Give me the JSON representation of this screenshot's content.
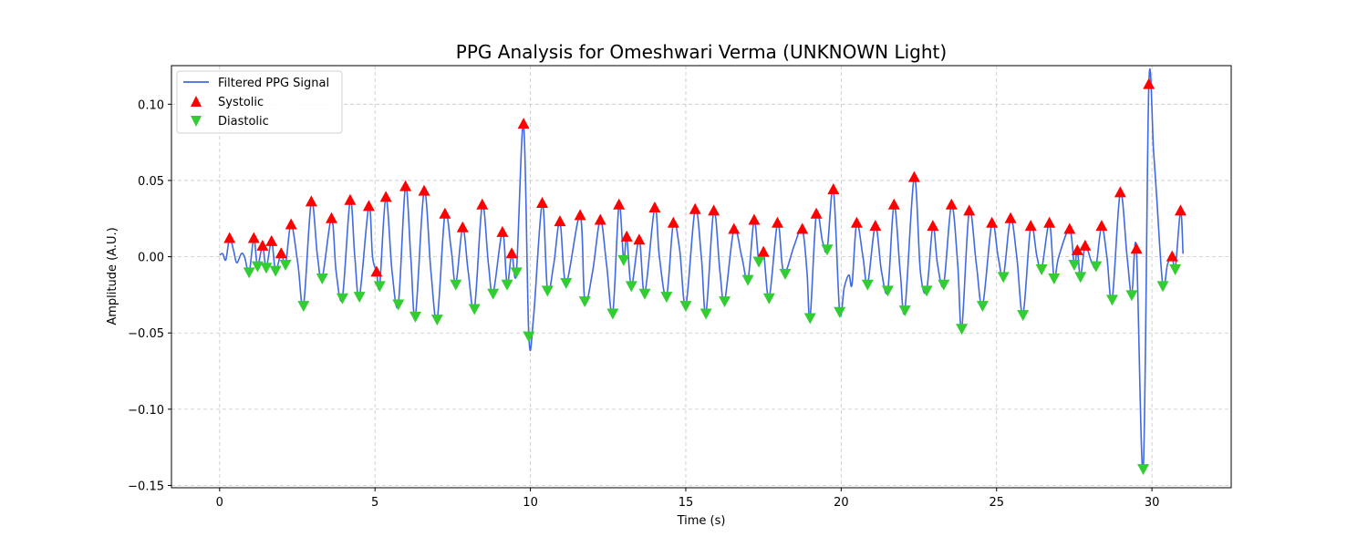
{
  "chart_data": {
    "type": "line",
    "title": "PPG Analysis for Omeshwari Verma (UNKNOWN Light)",
    "xlabel": "Time (s)",
    "ylabel": "Amplitude (A.U.)",
    "xlim": [
      -1.55,
      32.55
    ],
    "ylim": [
      -0.1515,
      0.1253
    ],
    "xticks": [
      0,
      5,
      10,
      15,
      20,
      25,
      30
    ],
    "xtick_labels": [
      "0",
      "5",
      "10",
      "15",
      "20",
      "25",
      "30"
    ],
    "yticks": [
      -0.15,
      -0.1,
      -0.05,
      0.0,
      0.05,
      0.1
    ],
    "ytick_labels": [
      "−0.15",
      "−0.10",
      "−0.05",
      "0.00",
      "0.05",
      "0.10"
    ],
    "grid": true,
    "legend_position": "top-left",
    "colors": {
      "signal": "#4169e1",
      "systolic": "#ff0000",
      "diastolic": "#32cd32"
    },
    "series": [
      {
        "name": "Filtered PPG Signal",
        "kind": "line",
        "points": [
          [
            0.0,
            0.001
          ],
          [
            0.1,
            0.002
          ],
          [
            0.2,
            -0.002
          ],
          [
            0.32,
            0.012
          ],
          [
            0.45,
            0.004
          ],
          [
            0.55,
            -0.004
          ],
          [
            0.7,
            0.002
          ],
          [
            0.8,
            0.0
          ],
          [
            0.95,
            -0.01
          ],
          [
            1.1,
            0.012
          ],
          [
            1.22,
            -0.006
          ],
          [
            1.38,
            0.007
          ],
          [
            1.5,
            -0.007
          ],
          [
            1.67,
            0.01
          ],
          [
            1.8,
            -0.009
          ],
          [
            1.98,
            0.002
          ],
          [
            2.12,
            -0.005
          ],
          [
            2.3,
            0.021
          ],
          [
            2.52,
            -0.005
          ],
          [
            2.7,
            -0.032
          ],
          [
            2.95,
            0.036
          ],
          [
            3.15,
            0.0
          ],
          [
            3.3,
            -0.014
          ],
          [
            3.6,
            0.025
          ],
          [
            3.75,
            -0.01
          ],
          [
            3.95,
            -0.027
          ],
          [
            4.2,
            0.037
          ],
          [
            4.35,
            0.0
          ],
          [
            4.5,
            -0.026
          ],
          [
            4.8,
            0.033
          ],
          [
            4.92,
            0.0
          ],
          [
            5.05,
            -0.01
          ],
          [
            5.15,
            -0.019
          ],
          [
            5.35,
            0.039
          ],
          [
            5.55,
            -0.01
          ],
          [
            5.75,
            -0.031
          ],
          [
            5.98,
            0.046
          ],
          [
            6.15,
            0.0
          ],
          [
            6.3,
            -0.039
          ],
          [
            6.58,
            0.043
          ],
          [
            6.8,
            -0.01
          ],
          [
            7.0,
            -0.041
          ],
          [
            7.25,
            0.028
          ],
          [
            7.45,
            0.005
          ],
          [
            7.6,
            -0.018
          ],
          [
            7.82,
            0.019
          ],
          [
            8.0,
            -0.01
          ],
          [
            8.2,
            -0.034
          ],
          [
            8.45,
            0.034
          ],
          [
            8.65,
            -0.005
          ],
          [
            8.8,
            -0.024
          ],
          [
            9.1,
            0.016
          ],
          [
            9.25,
            -0.018
          ],
          [
            9.4,
            0.002
          ],
          [
            9.55,
            -0.01
          ],
          [
            9.78,
            0.087
          ],
          [
            9.95,
            -0.052
          ],
          [
            10.1,
            -0.04
          ],
          [
            10.38,
            0.035
          ],
          [
            10.55,
            -0.022
          ],
          [
            10.75,
            -0.005
          ],
          [
            10.95,
            0.023
          ],
          [
            11.15,
            -0.017
          ],
          [
            11.6,
            0.027
          ],
          [
            11.75,
            -0.029
          ],
          [
            12.0,
            -0.01
          ],
          [
            12.25,
            0.024
          ],
          [
            12.45,
            -0.005
          ],
          [
            12.65,
            -0.037
          ],
          [
            12.85,
            0.034
          ],
          [
            13.0,
            -0.002
          ],
          [
            13.1,
            0.013
          ],
          [
            13.25,
            -0.019
          ],
          [
            13.5,
            0.011
          ],
          [
            13.68,
            -0.024
          ],
          [
            14.0,
            0.032
          ],
          [
            14.15,
            0.0
          ],
          [
            14.38,
            -0.026
          ],
          [
            14.6,
            0.022
          ],
          [
            14.8,
            0.005
          ],
          [
            15.0,
            -0.032
          ],
          [
            15.3,
            0.031
          ],
          [
            15.5,
            0.0
          ],
          [
            15.65,
            -0.037
          ],
          [
            15.9,
            0.03
          ],
          [
            16.1,
            -0.01
          ],
          [
            16.25,
            -0.029
          ],
          [
            16.55,
            0.018
          ],
          [
            16.8,
            0.0
          ],
          [
            17.0,
            -0.015
          ],
          [
            17.2,
            0.024
          ],
          [
            17.35,
            -0.003
          ],
          [
            17.5,
            0.003
          ],
          [
            17.68,
            -0.027
          ],
          [
            17.95,
            0.022
          ],
          [
            18.1,
            -0.005
          ],
          [
            18.2,
            -0.011
          ],
          [
            18.5,
            0.008
          ],
          [
            18.75,
            0.018
          ],
          [
            18.9,
            -0.01
          ],
          [
            19.0,
            -0.04
          ],
          [
            19.2,
            0.028
          ],
          [
            19.4,
            0.01
          ],
          [
            19.55,
            0.005
          ],
          [
            19.75,
            0.044
          ],
          [
            19.95,
            -0.036
          ],
          [
            20.1,
            -0.02
          ],
          [
            20.25,
            -0.012
          ],
          [
            20.35,
            -0.018
          ],
          [
            20.5,
            0.022
          ],
          [
            20.7,
            0.0
          ],
          [
            20.85,
            -0.018
          ],
          [
            21.1,
            0.02
          ],
          [
            21.3,
            -0.01
          ],
          [
            21.5,
            -0.022
          ],
          [
            21.7,
            0.034
          ],
          [
            21.9,
            -0.01
          ],
          [
            22.05,
            -0.035
          ],
          [
            22.35,
            0.052
          ],
          [
            22.55,
            -0.01
          ],
          [
            22.75,
            -0.022
          ],
          [
            22.95,
            0.02
          ],
          [
            23.1,
            -0.005
          ],
          [
            23.3,
            -0.018
          ],
          [
            23.55,
            0.034
          ],
          [
            23.75,
            -0.005
          ],
          [
            23.88,
            -0.047
          ],
          [
            24.12,
            0.03
          ],
          [
            24.35,
            -0.005
          ],
          [
            24.55,
            -0.032
          ],
          [
            24.85,
            0.022
          ],
          [
            25.05,
            0.0
          ],
          [
            25.22,
            -0.013
          ],
          [
            25.45,
            0.025
          ],
          [
            25.65,
            0.0
          ],
          [
            25.85,
            -0.038
          ],
          [
            26.1,
            0.02
          ],
          [
            26.3,
            0.0
          ],
          [
            26.45,
            -0.008
          ],
          [
            26.7,
            0.022
          ],
          [
            26.85,
            -0.014
          ],
          [
            27.0,
            0.0
          ],
          [
            27.35,
            0.018
          ],
          [
            27.5,
            -0.005
          ],
          [
            27.6,
            0.004
          ],
          [
            27.7,
            -0.013
          ],
          [
            27.85,
            0.007
          ],
          [
            28.05,
            -0.003
          ],
          [
            28.2,
            -0.006
          ],
          [
            28.38,
            0.02
          ],
          [
            28.55,
            0.0
          ],
          [
            28.72,
            -0.028
          ],
          [
            28.98,
            0.042
          ],
          [
            29.2,
            0.0
          ],
          [
            29.35,
            -0.025
          ],
          [
            29.5,
            0.005
          ],
          [
            29.72,
            -0.139
          ],
          [
            29.9,
            0.113
          ],
          [
            30.05,
            0.07
          ],
          [
            30.15,
            0.04
          ],
          [
            30.35,
            -0.019
          ],
          [
            30.5,
            -0.005
          ],
          [
            30.65,
            0.0
          ],
          [
            30.75,
            -0.008
          ],
          [
            30.92,
            0.03
          ],
          [
            31.0,
            0.002
          ]
        ]
      },
      {
        "name": "Systolic",
        "kind": "marker-up",
        "points": [
          [
            0.32,
            0.012
          ],
          [
            1.1,
            0.012
          ],
          [
            1.38,
            0.007
          ],
          [
            1.67,
            0.01
          ],
          [
            1.98,
            0.002
          ],
          [
            2.3,
            0.021
          ],
          [
            2.95,
            0.036
          ],
          [
            3.6,
            0.025
          ],
          [
            4.2,
            0.037
          ],
          [
            4.8,
            0.033
          ],
          [
            5.05,
            -0.01
          ],
          [
            5.35,
            0.039
          ],
          [
            5.98,
            0.046
          ],
          [
            6.58,
            0.043
          ],
          [
            7.25,
            0.028
          ],
          [
            7.82,
            0.019
          ],
          [
            8.45,
            0.034
          ],
          [
            9.1,
            0.016
          ],
          [
            9.4,
            0.002
          ],
          [
            9.78,
            0.087
          ],
          [
            10.38,
            0.035
          ],
          [
            10.95,
            0.023
          ],
          [
            11.6,
            0.027
          ],
          [
            12.25,
            0.024
          ],
          [
            12.85,
            0.034
          ],
          [
            13.1,
            0.013
          ],
          [
            13.5,
            0.011
          ],
          [
            14.0,
            0.032
          ],
          [
            14.6,
            0.022
          ],
          [
            15.3,
            0.031
          ],
          [
            15.9,
            0.03
          ],
          [
            16.55,
            0.018
          ],
          [
            17.2,
            0.024
          ],
          [
            17.5,
            0.003
          ],
          [
            17.95,
            0.022
          ],
          [
            18.75,
            0.018
          ],
          [
            19.2,
            0.028
          ],
          [
            19.75,
            0.044
          ],
          [
            20.5,
            0.022
          ],
          [
            21.1,
            0.02
          ],
          [
            21.7,
            0.034
          ],
          [
            22.35,
            0.052
          ],
          [
            22.95,
            0.02
          ],
          [
            23.55,
            0.034
          ],
          [
            24.12,
            0.03
          ],
          [
            24.85,
            0.022
          ],
          [
            25.45,
            0.025
          ],
          [
            26.1,
            0.02
          ],
          [
            26.7,
            0.022
          ],
          [
            27.35,
            0.018
          ],
          [
            27.6,
            0.004
          ],
          [
            27.85,
            0.007
          ],
          [
            28.38,
            0.02
          ],
          [
            28.98,
            0.042
          ],
          [
            29.5,
            0.005
          ],
          [
            29.9,
            0.113
          ],
          [
            30.65,
            0.0
          ],
          [
            30.92,
            0.03
          ]
        ]
      },
      {
        "name": "Diastolic",
        "kind": "marker-down",
        "points": [
          [
            0.95,
            -0.01
          ],
          [
            1.22,
            -0.006
          ],
          [
            1.5,
            -0.007
          ],
          [
            1.8,
            -0.009
          ],
          [
            2.12,
            -0.005
          ],
          [
            2.7,
            -0.032
          ],
          [
            3.3,
            -0.014
          ],
          [
            3.95,
            -0.027
          ],
          [
            4.5,
            -0.026
          ],
          [
            5.15,
            -0.019
          ],
          [
            5.75,
            -0.031
          ],
          [
            6.3,
            -0.039
          ],
          [
            7.0,
            -0.041
          ],
          [
            7.6,
            -0.018
          ],
          [
            8.2,
            -0.034
          ],
          [
            8.8,
            -0.024
          ],
          [
            9.25,
            -0.018
          ],
          [
            9.55,
            -0.01
          ],
          [
            9.95,
            -0.052
          ],
          [
            10.55,
            -0.022
          ],
          [
            11.15,
            -0.017
          ],
          [
            11.75,
            -0.029
          ],
          [
            12.65,
            -0.037
          ],
          [
            13.0,
            -0.002
          ],
          [
            13.25,
            -0.019
          ],
          [
            13.68,
            -0.024
          ],
          [
            14.38,
            -0.026
          ],
          [
            15.0,
            -0.032
          ],
          [
            15.65,
            -0.037
          ],
          [
            16.25,
            -0.029
          ],
          [
            17.0,
            -0.015
          ],
          [
            17.35,
            -0.003
          ],
          [
            17.68,
            -0.027
          ],
          [
            18.2,
            -0.011
          ],
          [
            19.0,
            -0.04
          ],
          [
            19.55,
            0.005
          ],
          [
            19.95,
            -0.036
          ],
          [
            20.85,
            -0.018
          ],
          [
            21.5,
            -0.022
          ],
          [
            22.05,
            -0.035
          ],
          [
            22.75,
            -0.022
          ],
          [
            23.3,
            -0.018
          ],
          [
            23.88,
            -0.047
          ],
          [
            24.55,
            -0.032
          ],
          [
            25.22,
            -0.013
          ],
          [
            25.85,
            -0.038
          ],
          [
            26.45,
            -0.008
          ],
          [
            26.85,
            -0.014
          ],
          [
            27.5,
            -0.005
          ],
          [
            27.7,
            -0.013
          ],
          [
            28.2,
            -0.006
          ],
          [
            28.72,
            -0.028
          ],
          [
            29.35,
            -0.025
          ],
          [
            29.72,
            -0.139
          ],
          [
            30.35,
            -0.019
          ],
          [
            30.75,
            -0.008
          ]
        ]
      }
    ]
  }
}
